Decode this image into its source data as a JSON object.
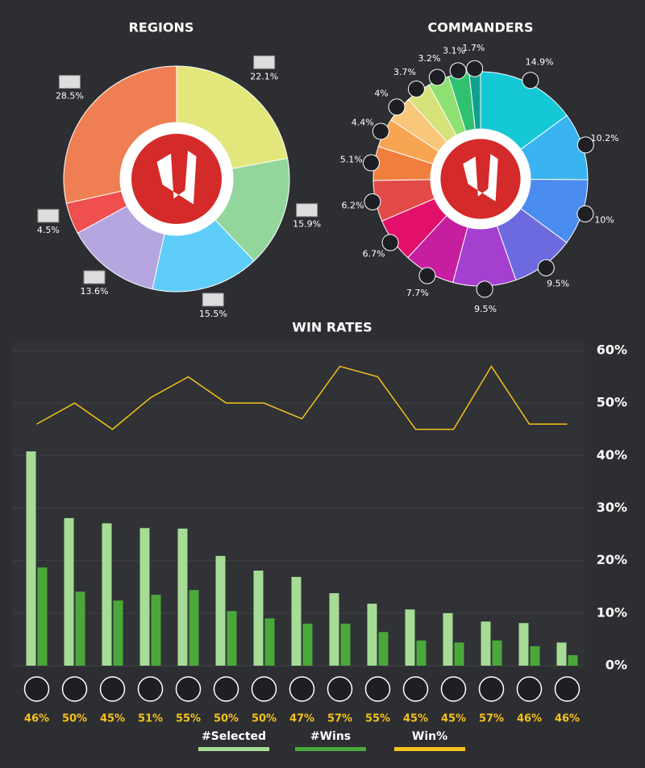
{
  "chart_data": [
    {
      "type": "pie",
      "title": "REGIONS",
      "values": [
        22.1,
        15.9,
        15.5,
        13.6,
        4.5,
        28.5
      ],
      "value_labels": [
        "22.1%",
        "15.9%",
        "15.5%",
        "13.6%",
        "4.5%",
        "28.5%"
      ],
      "colors": [
        "#e3e67a",
        "#93d69c",
        "#5fcdfa",
        "#b6a6e0",
        "#ef4f4f",
        "#ef7f52"
      ]
    },
    {
      "type": "pie",
      "title": "COMMANDERS",
      "values": [
        14.9,
        10.2,
        10,
        9.5,
        9.5,
        7.7,
        6.7,
        6.2,
        5.1,
        4.4,
        4,
        3.7,
        3.2,
        3.1,
        1.7
      ],
      "value_labels": [
        "14.9%",
        "10.2%",
        "10%",
        "9.5%",
        "9.5%",
        "7.7%",
        "6.7%",
        "6.2%",
        "5.1%",
        "4.4%",
        "4%",
        "3.7%",
        "3.2%",
        "3.1%",
        "1.7%"
      ],
      "colors": [
        "#14c8d6",
        "#3ab4f0",
        "#4a8cf0",
        "#6d6ae0",
        "#a43fd0",
        "#c51fa0",
        "#e3106b",
        "#e24a48",
        "#f07f3f",
        "#f8a553",
        "#f9c77a",
        "#d6e27a",
        "#8fe072",
        "#30c170",
        "#0fa08e"
      ]
    },
    {
      "type": "bar",
      "title": "WIN RATES",
      "categories": [
        null,
        null,
        null,
        null,
        null,
        null,
        null,
        null,
        null,
        null,
        null,
        null,
        null,
        null,
        null
      ],
      "series": [
        {
          "name": "#Selected",
          "color": "#a6dc96",
          "values": [
            40.8,
            28.1,
            27.1,
            26.2,
            26.1,
            20.9,
            18.1,
            16.9,
            13.8,
            11.8,
            10.7,
            10.0,
            8.4,
            8.1,
            4.4
          ]
        },
        {
          "name": "#Wins",
          "color": "#4aa83a",
          "values": [
            18.7,
            14.1,
            12.4,
            13.5,
            14.4,
            10.4,
            9.0,
            8.0,
            8.0,
            6.4,
            4.8,
            4.4,
            4.8,
            3.7,
            2.0
          ]
        },
        {
          "name": "Win%",
          "type": "line",
          "color": "#f5c21b",
          "values": [
            46,
            50,
            45,
            51,
            55,
            50,
            50,
            47,
            57,
            55,
            45,
            45,
            57,
            46,
            46
          ],
          "value_labels": [
            "46%",
            "50%",
            "45%",
            "51%",
            "55%",
            "50%",
            "50%",
            "47%",
            "57%",
            "55%",
            "45%",
            "45%",
            "57%",
            "46%",
            "46%"
          ]
        }
      ],
      "ylim": [
        0,
        60
      ],
      "yticks": [
        {
          "value": 0,
          "label": "0%"
        },
        {
          "value": 10,
          "label": "10%"
        },
        {
          "value": 20,
          "label": "20%"
        },
        {
          "value": 30,
          "label": "30%"
        },
        {
          "value": 40,
          "label": "40%"
        },
        {
          "value": 50,
          "label": "50%"
        },
        {
          "value": 60,
          "label": "60%"
        }
      ],
      "grid": true
    }
  ]
}
